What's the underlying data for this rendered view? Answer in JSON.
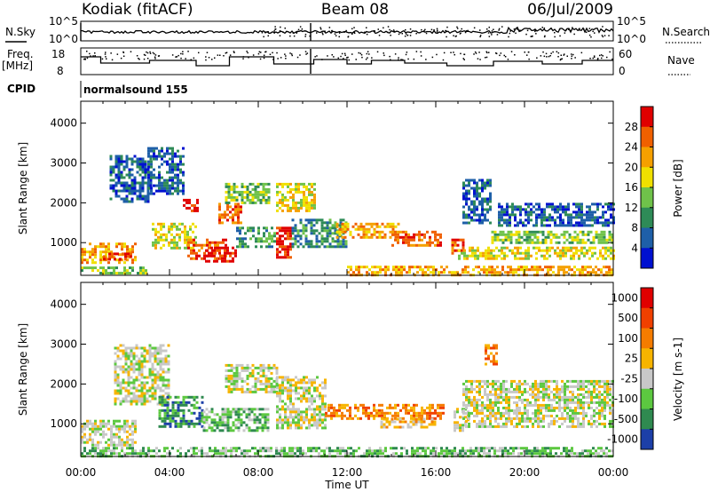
{
  "header": {
    "station": "Kodiak (fitACF)",
    "beam": "Beam 08",
    "date": "06/Jul/2009"
  },
  "strips": {
    "nsky_label": "N.Sky",
    "nsky_ticks": [
      "10^5",
      "10^0"
    ],
    "nsearch_label": "N.Search",
    "nsearch_ticks": [
      "10^5",
      "10^0"
    ],
    "freq_label": "Freq.",
    "freq_unit": "[MHz]",
    "freq_ticks": [
      "18",
      "8"
    ],
    "nave_label": "Nave",
    "nave_ticks": [
      "60",
      "0"
    ],
    "cpid_label": "CPID",
    "cpid_value": "normalsound 155"
  },
  "chart_data": [
    {
      "type": "heatmap",
      "name": "power-panel",
      "ylabel": "Slant Range [km]",
      "yticks": [
        1000,
        2000,
        3000,
        4000
      ],
      "ylim": [
        180,
        4550
      ],
      "xlabel": "Time UT",
      "xticks": [
        "00:00",
        "04:00",
        "08:00",
        "12:00",
        "16:00",
        "20:00",
        "00:00"
      ],
      "xlim_hours": [
        0,
        24
      ],
      "colorbar": {
        "label": "Power [dB]",
        "ticks": [
          "4",
          "8",
          "12",
          "16",
          "20",
          "24",
          "28"
        ],
        "colors": [
          "#0010d0",
          "#1e5fa8",
          "#2e8b57",
          "#6fc24a",
          "#f0e000",
          "#f5a000",
          "#f06000",
          "#e00000"
        ]
      },
      "regions": [
        {
          "t": [
            0.0,
            3.0
          ],
          "r": [
            250,
            400
          ],
          "level": 3
        },
        {
          "t": [
            0.0,
            2.5
          ],
          "r": [
            500,
            1000
          ],
          "level": 5
        },
        {
          "t": [
            1.0,
            2.3
          ],
          "r": [
            550,
            750
          ],
          "level": 7
        },
        {
          "t": [
            1.3,
            3.2
          ],
          "r": [
            2000,
            3200
          ],
          "level": 1
        },
        {
          "t": [
            3.0,
            4.6
          ],
          "r": [
            2200,
            3400
          ],
          "level": 1
        },
        {
          "t": [
            3.2,
            5.2
          ],
          "r": [
            850,
            1500
          ],
          "level": 4
        },
        {
          "t": [
            4.8,
            6.6
          ],
          "r": [
            600,
            1100
          ],
          "level": 6
        },
        {
          "t": [
            5.6,
            7.0
          ],
          "r": [
            500,
            900
          ],
          "level": 7
        },
        {
          "t": [
            4.6,
            5.3
          ],
          "r": [
            1800,
            2100
          ],
          "level": 7
        },
        {
          "t": [
            6.2,
            7.2
          ],
          "r": [
            1500,
            2000
          ],
          "level": 6
        },
        {
          "t": [
            6.5,
            8.5
          ],
          "r": [
            2000,
            2500
          ],
          "level": 3
        },
        {
          "t": [
            7.0,
            8.8
          ],
          "r": [
            900,
            1400
          ],
          "level": 2
        },
        {
          "t": [
            8.8,
            9.5
          ],
          "r": [
            600,
            1400
          ],
          "level": 7
        },
        {
          "t": [
            8.8,
            10.5
          ],
          "r": [
            1800,
            2500
          ],
          "level": 4
        },
        {
          "t": [
            9.5,
            12.0
          ],
          "r": [
            900,
            1600
          ],
          "level": 2
        },
        {
          "t": [
            11.5,
            14.3
          ],
          "r": [
            1100,
            1500
          ],
          "level": 5
        },
        {
          "t": [
            14.0,
            16.2
          ],
          "r": [
            900,
            1300
          ],
          "level": 6
        },
        {
          "t": [
            16.7,
            17.3
          ],
          "r": [
            700,
            1100
          ],
          "level": 6
        },
        {
          "t": [
            17.2,
            18.5
          ],
          "r": [
            1500,
            2600
          ],
          "level": 1
        },
        {
          "t": [
            18.5,
            24.0
          ],
          "r": [
            1000,
            1300
          ],
          "level": 3
        },
        {
          "t": [
            18.8,
            24.0
          ],
          "r": [
            1400,
            2000
          ],
          "level": 1
        },
        {
          "t": [
            17.0,
            24.0
          ],
          "r": [
            600,
            900
          ],
          "level": 4
        },
        {
          "t": [
            12.0,
            24.0
          ],
          "r": [
            200,
            420
          ],
          "level": 5
        }
      ]
    },
    {
      "type": "heatmap",
      "name": "velocity-panel",
      "ylabel": "Slant Range [km]",
      "yticks": [
        1000,
        2000,
        3000,
        4000
      ],
      "ylim": [
        180,
        4550
      ],
      "xlabel": "Time UT",
      "xticks": [
        "00:00",
        "04:00",
        "08:00",
        "12:00",
        "16:00",
        "20:00",
        "00:00"
      ],
      "xlim_hours": [
        0,
        24
      ],
      "colorbar": {
        "label": "Velocity [m s-1]",
        "ticks": [
          "1000",
          "500",
          "100",
          "25",
          "-25",
          "-100",
          "-500",
          "-1000"
        ],
        "colors": [
          "#1c3fa8",
          "#2f8a50",
          "#5cc840",
          "#c8c8c8",
          "#f7b400",
          "#f57c00",
          "#f04000",
          "#e00000"
        ]
      },
      "regions": [
        {
          "t": [
            0.0,
            2.5
          ],
          "r": [
            450,
            1100
          ],
          "level": 3
        },
        {
          "t": [
            1.5,
            4.0
          ],
          "r": [
            1500,
            3000
          ],
          "level": 3
        },
        {
          "t": [
            3.5,
            5.5
          ],
          "r": [
            900,
            1700
          ],
          "level": 1
        },
        {
          "t": [
            5.5,
            8.5
          ],
          "r": [
            800,
            1400
          ],
          "level": 2
        },
        {
          "t": [
            6.5,
            8.8
          ],
          "r": [
            1800,
            2500
          ],
          "level": 3
        },
        {
          "t": [
            8.8,
            11.0
          ],
          "r": [
            900,
            2200
          ],
          "level": 3
        },
        {
          "t": [
            11.0,
            16.3
          ],
          "r": [
            1100,
            1500
          ],
          "level": 5
        },
        {
          "t": [
            13.5,
            16.0
          ],
          "r": [
            900,
            1150
          ],
          "level": 4
        },
        {
          "t": [
            16.8,
            17.5
          ],
          "r": [
            800,
            1400
          ],
          "level": 3
        },
        {
          "t": [
            18.2,
            18.8
          ],
          "r": [
            2500,
            3000
          ],
          "level": 5
        },
        {
          "t": [
            17.2,
            24.0
          ],
          "r": [
            900,
            2100
          ],
          "level": 3
        },
        {
          "t": [
            0.0,
            24.0
          ],
          "r": [
            200,
            420
          ],
          "level": 2
        }
      ]
    }
  ]
}
